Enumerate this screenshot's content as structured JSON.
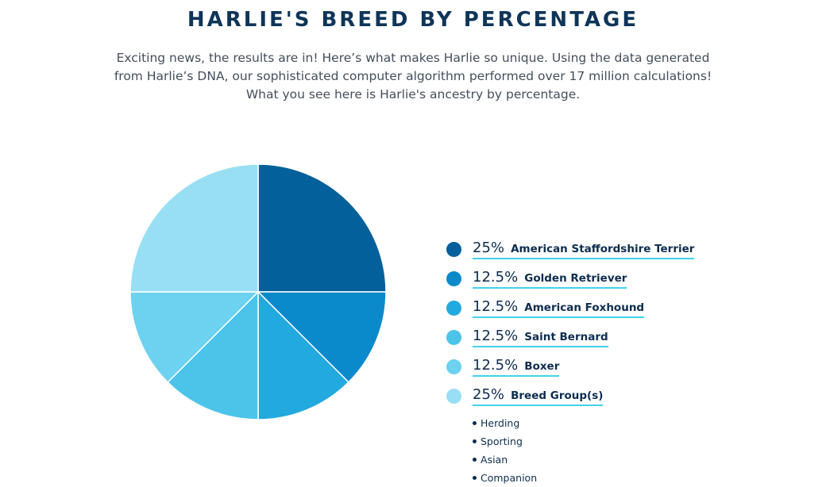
{
  "title": "HARLIE'S BREED BY PERCENTAGE",
  "intro": "Exciting news, the results are in! Here’s what makes Harlie so unique. Using the data generated from Harlie’s DNA, our sophisticated computer algorithm performed over 17 million calculations! What you see here is Harlie's ancestry by percentage.",
  "chart_data": {
    "type": "pie",
    "title": "HARLIE'S BREED BY PERCENTAGE",
    "slices": [
      {
        "label": "American Staffordshire Terrier",
        "display": "25%",
        "value": 25,
        "color": "#04609a"
      },
      {
        "label": "Golden Retriever",
        "display": "12.5%",
        "value": 12.5,
        "color": "#0a8acb"
      },
      {
        "label": "American Foxhound",
        "display": "12.5%",
        "value": 12.5,
        "color": "#22a9dd"
      },
      {
        "label": "Saint Bernard",
        "display": "12.5%",
        "value": 12.5,
        "color": "#4cc4ea"
      },
      {
        "label": "Boxer",
        "display": "12.5%",
        "value": 12.5,
        "color": "#6dd1f0"
      },
      {
        "label": "Breed Group(s)",
        "display": "25%",
        "value": 25,
        "color": "#98dff4"
      }
    ],
    "legend_position": "right"
  },
  "breed_groups": [
    "Herding",
    "Sporting",
    "Asian",
    "Companion"
  ],
  "colors": {
    "title": "#0f3558",
    "text": "#0d2d4f",
    "underline": "#3fd3ea"
  }
}
